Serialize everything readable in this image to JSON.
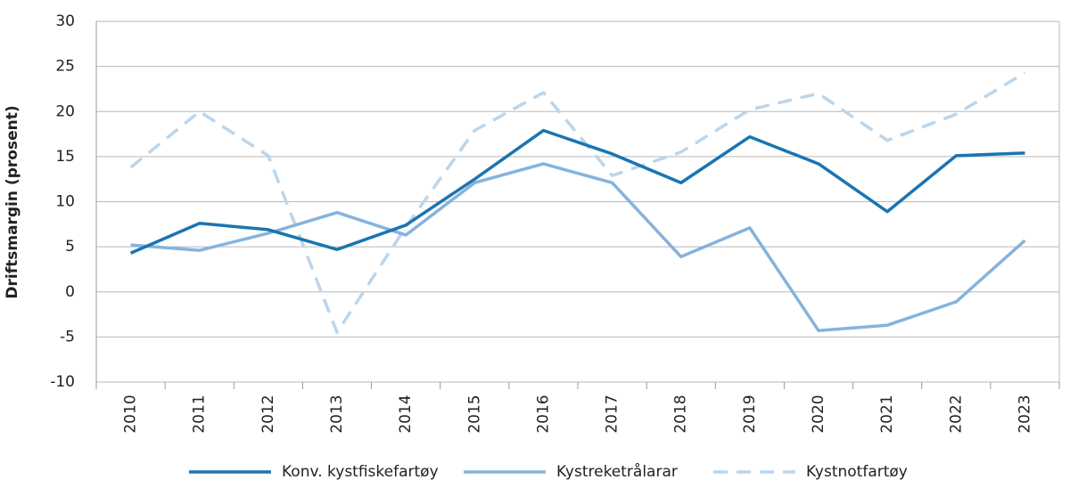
{
  "chart_data": {
    "type": "line",
    "y_label": "Driftsmargin (prosent)",
    "categories": [
      "2010",
      "2011",
      "2012",
      "2013",
      "2014",
      "2015",
      "2016",
      "2017",
      "2018",
      "2019",
      "2020",
      "2021",
      "2022",
      "2023"
    ],
    "series": [
      {
        "name": "Konv. kystfiskefartøy",
        "color": "#1a75b0",
        "dash": false,
        "values": [
          4.3,
          7.6,
          6.9,
          4.7,
          7.4,
          12.5,
          17.9,
          15.3,
          12.1,
          17.2,
          14.2,
          8.9,
          15.1,
          15.4
        ]
      },
      {
        "name": "Kystreketrålarar",
        "color": "#85b3dc",
        "dash": false,
        "values": [
          5.2,
          4.6,
          6.5,
          8.8,
          6.3,
          12.1,
          14.2,
          12.1,
          3.9,
          7.1,
          -4.3,
          -3.7,
          -1.1,
          5.7
        ]
      },
      {
        "name": "Kystnotfartøy",
        "color": "#bcd5ea",
        "dash": true,
        "values": [
          13.8,
          20.0,
          15.1,
          -4.5,
          7.2,
          17.9,
          22.1,
          12.9,
          15.5,
          20.2,
          22.0,
          16.8,
          19.7,
          24.3
        ]
      }
    ],
    "ylim": [
      -10,
      30
    ],
    "yticks": [
      -10,
      -5,
      0,
      5,
      10,
      15,
      20,
      25,
      30
    ],
    "grid": true
  }
}
